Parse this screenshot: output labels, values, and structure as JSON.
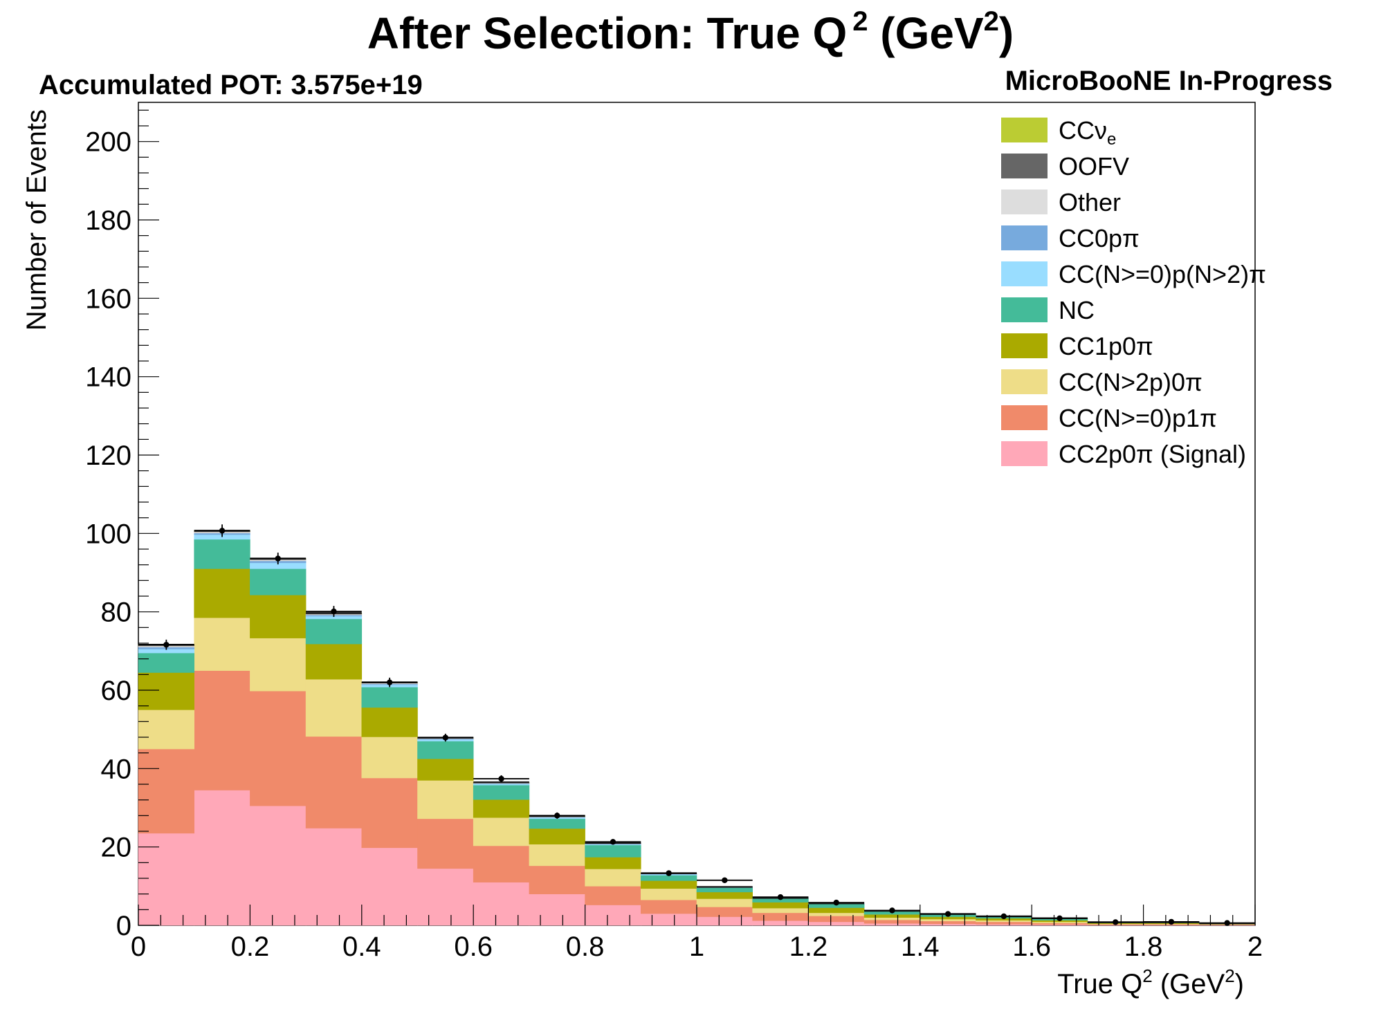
{
  "header": {
    "title_main": "After Selection: True Q",
    "title_sup1": "2",
    "title_unit_open": " (GeV",
    "title_sup2": "2",
    "title_unit_close": ")",
    "pot": "Accumulated POT: 3.575e+19",
    "experiment": "MicroBooNE In-Progress"
  },
  "chart_data": {
    "type": "bar",
    "stacked": true,
    "title": "After Selection: True Q^2 (GeV^2)",
    "xlabel": "True Q^2 (GeV^2)",
    "ylabel": "Number of Events",
    "xlim": [
      0,
      2
    ],
    "ylim": [
      0,
      210
    ],
    "x_bin_edges": [
      0,
      0.1,
      0.2,
      0.3,
      0.4,
      0.5,
      0.6,
      0.7,
      0.8,
      0.9,
      1.0,
      1.1,
      1.2,
      1.3,
      1.4,
      1.5,
      1.6,
      1.7,
      1.8,
      1.9,
      2.0
    ],
    "x_ticks": [
      "0",
      "0.2",
      "0.4",
      "0.6",
      "0.8",
      "1",
      "1.2",
      "1.4",
      "1.6",
      "1.8",
      "2"
    ],
    "y_ticks": [
      "0",
      "20",
      "40",
      "60",
      "80",
      "100",
      "120",
      "140",
      "160",
      "180",
      "200"
    ],
    "legend_position": "top-right",
    "series": [
      {
        "name": "CC2p0π (Signal)",
        "color": "#ffa8b8",
        "values": [
          23.5,
          34.5,
          30.5,
          24.8,
          19.8,
          14.5,
          11.0,
          8.0,
          5.2,
          3.0,
          2.2,
          1.2,
          0.9,
          0.5,
          0.4,
          0.3,
          0.2,
          0.1,
          0.1,
          0.1
        ]
      },
      {
        "name": "CC(N>=0)p1π",
        "color": "#f08a6a",
        "values": [
          21.5,
          30.5,
          29.3,
          23.4,
          17.8,
          12.7,
          9.3,
          7.2,
          4.8,
          3.5,
          2.5,
          2.0,
          1.5,
          0.9,
          0.7,
          0.6,
          0.4,
          0.2,
          0.2,
          0.1
        ]
      },
      {
        "name": "CC(N>2p)0π",
        "color": "#eedd88",
        "values": [
          10.0,
          13.5,
          13.5,
          14.6,
          10.5,
          9.8,
          7.2,
          5.5,
          4.4,
          2.9,
          2.1,
          1.2,
          0.8,
          0.6,
          0.5,
          0.4,
          0.3,
          0.1,
          0.1,
          0.1
        ]
      },
      {
        "name": "CC1p0π",
        "color": "#aaaa00",
        "values": [
          9.5,
          12.5,
          11.0,
          9.0,
          7.5,
          5.5,
          4.6,
          4.0,
          3.0,
          2.0,
          1.7,
          1.5,
          1.3,
          0.8,
          0.6,
          0.5,
          0.4,
          0.2,
          0.2,
          0.1
        ]
      },
      {
        "name": "NC",
        "color": "#44bb99",
        "values": [
          5.0,
          7.5,
          6.7,
          6.4,
          5.2,
          4.5,
          3.7,
          2.5,
          3.1,
          1.4,
          1.1,
          1.0,
          1.0,
          0.8,
          0.6,
          0.4,
          0.5,
          0.2,
          0.2,
          0.1
        ]
      },
      {
        "name": "CC(N>=0)p(N>2)π",
        "color": "#99ddff",
        "values": [
          1.0,
          1.2,
          1.5,
          0.7,
          0.6,
          0.4,
          0.3,
          0.3,
          0.2,
          0.2,
          0.1,
          0.1,
          0.1,
          0.1,
          0.1,
          0.1,
          0.0,
          0.0,
          0.0,
          0.0
        ]
      },
      {
        "name": "CC0pπ",
        "color": "#77aadd",
        "values": [
          0.5,
          0.4,
          0.5,
          0.3,
          0.2,
          0.2,
          0.1,
          0.1,
          0.1,
          0.1,
          0.1,
          0.0,
          0.0,
          0.0,
          0.0,
          0.0,
          0.0,
          0.0,
          0.0,
          0.0
        ]
      },
      {
        "name": "Other",
        "color": "#dddddd",
        "values": [
          0.3,
          0.3,
          0.3,
          0.2,
          0.2,
          0.1,
          0.1,
          0.1,
          0.1,
          0.1,
          0.0,
          0.0,
          0.0,
          0.0,
          0.0,
          0.0,
          0.0,
          0.0,
          0.0,
          0.0
        ]
      },
      {
        "name": "OOFV",
        "color": "#666666",
        "values": [
          0.2,
          0.2,
          0.2,
          0.2,
          0.1,
          0.1,
          0.1,
          0.1,
          0.1,
          0.1,
          0.0,
          0.0,
          0.0,
          0.0,
          0.0,
          0.0,
          0.0,
          0.0,
          0.0,
          0.0
        ]
      },
      {
        "name": "CCνe",
        "color": "#bbcc33",
        "values": [
          0.1,
          0.1,
          0.1,
          0.1,
          0.1,
          0.1,
          0.1,
          0.1,
          0.0,
          0.0,
          0.0,
          0.0,
          0.0,
          0.0,
          0.0,
          0.0,
          0.0,
          0.0,
          0.0,
          0.0
        ]
      }
    ],
    "points": {
      "x": [
        0.05,
        0.15,
        0.25,
        0.35,
        0.45,
        0.55,
        0.65,
        0.75,
        0.85,
        0.95,
        1.05,
        1.15,
        1.25,
        1.35,
        1.45,
        1.55,
        1.65,
        1.75,
        1.85,
        1.95
      ],
      "y": [
        71.6,
        100.7,
        93.6,
        80.1,
        62.0,
        47.9,
        37.4,
        28.0,
        21.3,
        13.3,
        11.5,
        7.2,
        5.8,
        3.8,
        2.9,
        2.3,
        1.8,
        0.8,
        0.9,
        0.6
      ],
      "yerr": [
        1.3,
        1.6,
        1.5,
        1.4,
        1.2,
        1.0,
        0.9,
        0.8,
        0.7,
        0.6,
        0.5,
        0.4,
        0.4,
        0.3,
        0.3,
        0.3,
        0.2,
        0.2,
        0.2,
        0.2
      ]
    },
    "legend": [
      {
        "label": "CCν",
        "sub": "e",
        "color": "#bbcc33"
      },
      {
        "label": "OOFV",
        "sub": "",
        "color": "#666666"
      },
      {
        "label": "Other",
        "sub": "",
        "color": "#dddddd"
      },
      {
        "label": "CC0pπ",
        "sub": "",
        "color": "#77aadd"
      },
      {
        "label": "CC(N>=0)p(N>2)π",
        "sub": "",
        "color": "#99ddff"
      },
      {
        "label": "NC",
        "sub": "",
        "color": "#44bb99"
      },
      {
        "label": "CC1p0π",
        "sub": "",
        "color": "#aaaa00"
      },
      {
        "label": "CC(N>2p)0π",
        "sub": "",
        "color": "#eedd88"
      },
      {
        "label": "CC(N>=0)p1π",
        "sub": "",
        "color": "#f08a6a"
      },
      {
        "label": "CC2p0π (Signal)",
        "sub": "",
        "color": "#ffa8b8"
      }
    ],
    "axis_labels": {
      "x_main": "True Q",
      "x_sup1": "2",
      "x_unit_open": " (GeV",
      "x_sup2": "2",
      "x_unit_close": ")",
      "y": "Number of Events"
    }
  }
}
